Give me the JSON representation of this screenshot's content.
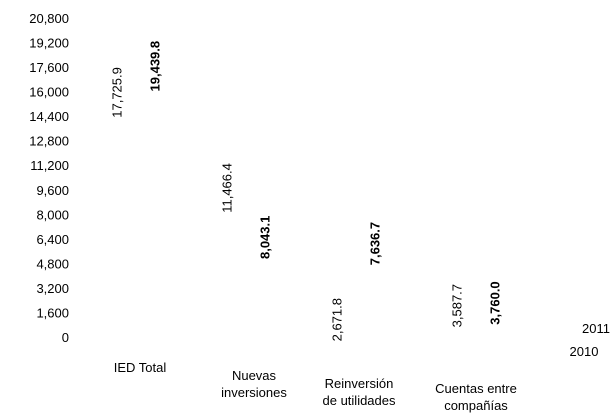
{
  "chart_data": {
    "type": "bar",
    "title": "",
    "xlabel": "",
    "ylabel": "",
    "ylim": [
      0,
      20800
    ],
    "y_ticks": [
      "0",
      "1,600",
      "3,200",
      "4,800",
      "6,400",
      "8,000",
      "9,600",
      "11,200",
      "12,800",
      "14,400",
      "16,000",
      "17,600",
      "19,200",
      "20,800"
    ],
    "categories": [
      [
        "IED Total"
      ],
      [
        "Nuevas",
        "inversiones"
      ],
      [
        "Reinversión",
        "de utilidades"
      ],
      [
        "Cuentas entre",
        "compañías"
      ]
    ],
    "series": [
      {
        "name": "2010",
        "values": [
          17725.9,
          11466.4,
          2671.8,
          3587.7
        ],
        "labels": [
          "17,725.9",
          "11,466.4",
          "2,671.8",
          "3,587.7"
        ],
        "bold": false
      },
      {
        "name": "2011",
        "values": [
          19439.8,
          8043.1,
          7636.7,
          3760.0
        ],
        "labels": [
          "19,439.8",
          "8,043.1",
          "7,636.7",
          "3,760.0"
        ],
        "bold": true
      }
    ],
    "legend": [
      "2011",
      "2010"
    ],
    "legend_position": "bottom-right",
    "grid": false,
    "bars_visible": false
  }
}
